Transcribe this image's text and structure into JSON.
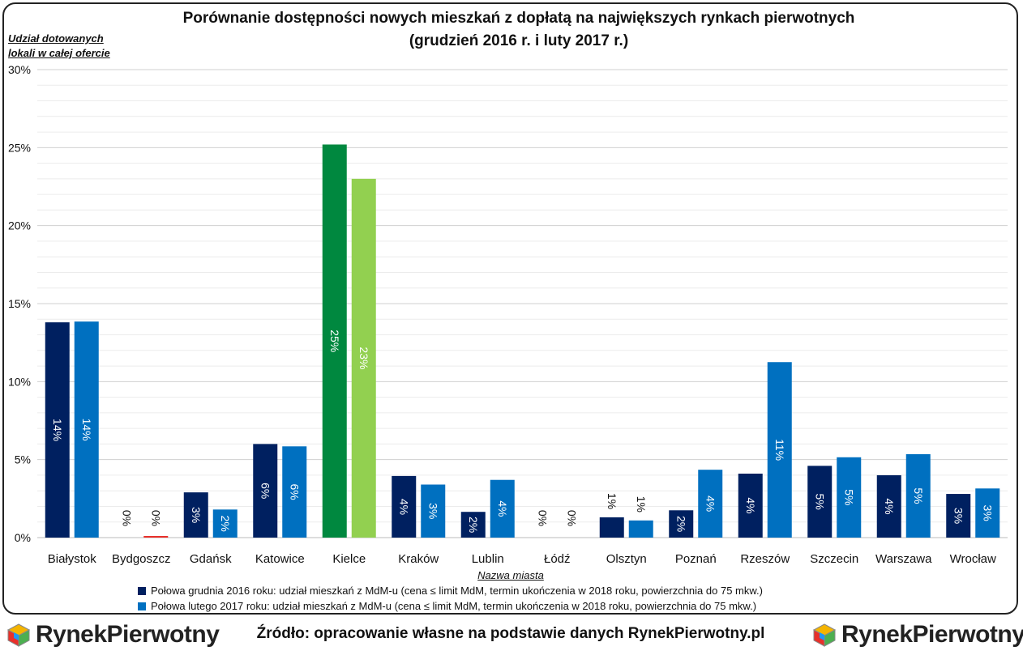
{
  "title_line1": "Porównanie dostępności nowych mieszkań z dopłatą na największych rynkach pierwotnych",
  "title_line2": "(grudzień 2016 r. i luty 2017 r.)",
  "ylabel_line1": "Udział dotowanych",
  "ylabel_line2": "lokali w całej ofercie",
  "xlabel": "Nazwa miasta",
  "source": "Źródło: opracowanie własne na podstawie danych RynekPierwotny.pl",
  "logo_left": {
    "part1": "Rynek",
    "part2": "Pierwotny"
  },
  "logo_right": {
    "part1": "Rynek",
    "part2": "Pierwotny"
  },
  "legend": [
    {
      "label": "Połowa grudnia 2016 roku: udział mieszkań z MdM-u (cena ≤ limit MdM, termin ukończenia w 2018 roku, powierzchnia do 75 mkw.)",
      "color": "#002060"
    },
    {
      "label": "Połowa lutego 2017 roku: udział mieszkań z MdM-u (cena ≤ limit MdM, termin ukończenia w 2018 roku, powierzchnia do 75 mkw.)",
      "color": "#0070C0"
    }
  ],
  "chart_data": {
    "type": "bar",
    "categories": [
      "Białystok",
      "Bydgoszcz",
      "Gdańsk",
      "Katowice",
      "Kielce",
      "Kraków",
      "Lublin",
      "Łódź",
      "Olsztyn",
      "Poznań",
      "Rzeszów",
      "Szczecin",
      "Warszawa",
      "Wrocław"
    ],
    "series": [
      {
        "name": "Połowa grudnia 2016 roku: udział mieszkań z MdM-u (cena ≤ limit MdM, termin ukończenia w 2018 roku, powierzchnia do 75 mkw.)",
        "values": [
          13.8,
          0,
          2.9,
          6.0,
          25.2,
          3.95,
          1.65,
          0,
          1.3,
          1.75,
          4.1,
          4.6,
          4.0,
          2.8
        ],
        "labels": [
          "14%",
          "0%",
          "3%",
          "6%",
          "25%",
          "4%",
          "2%",
          "0%",
          "1%",
          "2%",
          "4%",
          "5%",
          "4%",
          "3%"
        ],
        "colors": [
          "#002060",
          "#002060",
          "#002060",
          "#002060",
          "#00883F",
          "#002060",
          "#002060",
          "#002060",
          "#002060",
          "#002060",
          "#002060",
          "#002060",
          "#002060",
          "#002060"
        ]
      },
      {
        "name": "Połowa lutego 2017 roku: udział mieszkań z MdM-u (cena ≤ limit MdM, termin ukończenia w 2018 roku, powierzchnia do 75 mkw.)",
        "values": [
          13.85,
          0.1,
          1.8,
          5.85,
          23.0,
          3.4,
          3.7,
          0,
          1.1,
          4.35,
          11.25,
          5.15,
          5.35,
          3.15
        ],
        "labels": [
          "14%",
          "0%",
          "2%",
          "6%",
          "23%",
          "3%",
          "4%",
          "0%",
          "1%",
          "4%",
          "11%",
          "5%",
          "5%",
          "3%"
        ],
        "colors": [
          "#0070C0",
          "#E8302A",
          "#0070C0",
          "#0070C0",
          "#92D050",
          "#0070C0",
          "#0070C0",
          "#0070C0",
          "#0070C0",
          "#0070C0",
          "#0070C0",
          "#0070C0",
          "#0070C0",
          "#0070C0"
        ]
      }
    ],
    "yticks": [
      "0%",
      "5%",
      "10%",
      "15%",
      "20%",
      "25%",
      "30%"
    ],
    "ylim": [
      0,
      30
    ],
    "grid": true
  }
}
